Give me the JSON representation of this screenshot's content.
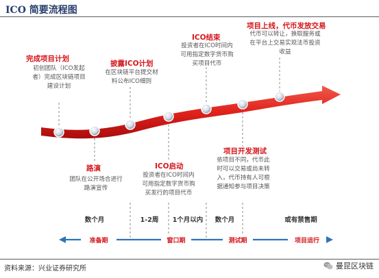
{
  "title": "ICO 简要流程图",
  "stages": [
    {
      "key": "plan",
      "title": "完成项目计划",
      "desc": [
        "初创团队（ICO发起",
        "者）完成区块链项目",
        "建设计划"
      ]
    },
    {
      "key": "roadshow",
      "title": "路演",
      "desc": [
        "团队在公开场合进行",
        "路演宣传"
      ]
    },
    {
      "key": "publish",
      "title": "披露ICO计划",
      "desc": [
        "在区块链平台提交材",
        "料公布ICO细则"
      ]
    },
    {
      "key": "launch",
      "title": "ICO启动",
      "desc": [
        "投资者在ICO时间内",
        "可用指定数字货币购",
        "买发行的项目代币"
      ]
    },
    {
      "key": "end",
      "title": "ICO结束",
      "desc": [
        "投资者在ICO时间内",
        "可用指定数字货币购",
        "买项目代币"
      ]
    },
    {
      "key": "dev",
      "title": "项目开发测试",
      "desc": [
        "依项目不同，代币此",
        "时可以交易或尚未转",
        "入，代币持有人可根",
        "据通知参与项目决策"
      ]
    },
    {
      "key": "listing",
      "title": "项目上线，代币发放交易",
      "desc": [
        "代币可以转让，换取服务或",
        "在平台上交易实现法币投资",
        "收益"
      ]
    }
  ],
  "periods": [
    "数个月",
    "1-2周",
    "1个月以内",
    "数个月",
    "或有禁售期"
  ],
  "phases": [
    "准备期",
    "窗口期",
    "测试期",
    "项目运行"
  ],
  "source": "资料来源：兴业证券研究所",
  "brand": "曼昆区块链",
  "colors": {
    "accent": "#d4161b",
    "arrow_band": "#2e73b8"
  },
  "icons": {
    "brand_logo": "wechat-icon"
  }
}
